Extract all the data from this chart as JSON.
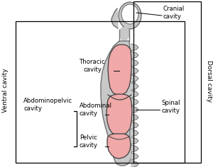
{
  "fig_width": 3.0,
  "fig_height": 2.36,
  "dpi": 100,
  "bg_color": "#ffffff",
  "body_fill": "#c8c8c8",
  "body_fill_dark": "#b0b0b0",
  "cavity_fill": "#f0a8a8",
  "body_outline": "#707070",
  "cavity_outline": "#404040",
  "box_color": "#000000",
  "text_color": "#000000",
  "font_size": 6.2,
  "ventral_label": "Ventral cavity",
  "dorsal_label": "Dorsal cavity",
  "labels": {
    "cranial": "Cranial\ncavity",
    "thoracic": "Thoracic\ncavity",
    "abdominopelvic": "Abdominopelvic\ncavity",
    "abdominal": "Abdominal\ncavity",
    "pelvic": "Pelvic\ncavity",
    "spinal": "Spinal\ncavity"
  }
}
